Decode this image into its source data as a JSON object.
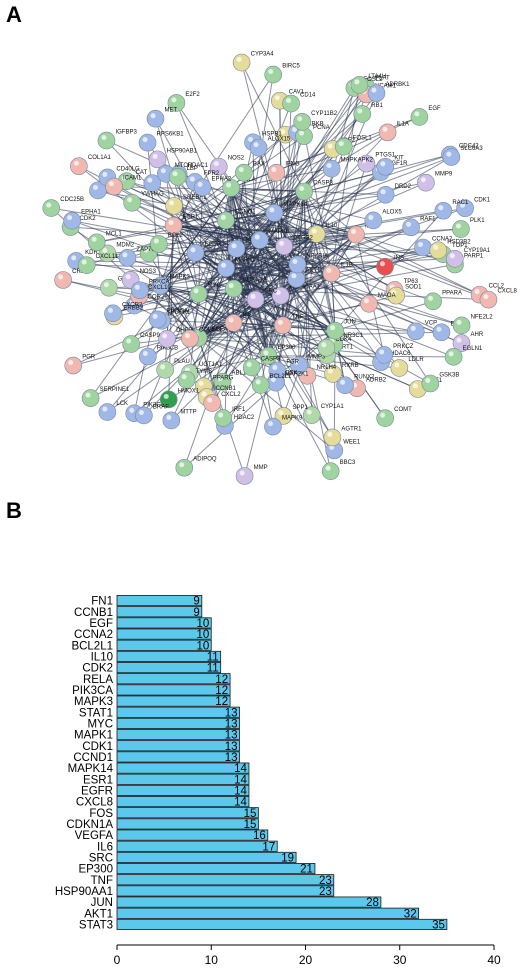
{
  "panel_a": {
    "label": "A",
    "nodes": [
      {
        "name": "PPARA",
        "color": "#9fd4a0"
      },
      {
        "name": "TP63",
        "color": "#f0b8b0"
      },
      {
        "name": "VCP",
        "color": "#9fb8e8"
      },
      {
        "name": "AHR",
        "color": "#d0c0e8"
      },
      {
        "name": "HDAC6",
        "color": "#9fb8e8"
      },
      {
        "name": "HSF1",
        "color": "#e6dc9a"
      },
      {
        "name": "SIRT1",
        "color": "#b0d8a8"
      },
      {
        "name": "RXRB",
        "color": "#e6dc9a"
      },
      {
        "name": "NR1H4",
        "color": "#f0b8b0"
      },
      {
        "name": "CYP1A1",
        "color": "#b0d8a8"
      },
      {
        "name": "MMP3",
        "color": "#9fb8e8"
      },
      {
        "name": "MMP",
        "color": "#d0c0e8"
      },
      {
        "name": "SPP1",
        "color": "#e6dc9a"
      },
      {
        "name": "ABL1",
        "color": "#9fd4a0"
      },
      {
        "name": "HDAC2",
        "color": "#9fb8e8"
      },
      {
        "name": "PPARG",
        "color": "#e6dc9a"
      },
      {
        "name": "ADIPOQ",
        "color": "#9fd4a0"
      },
      {
        "name": "UGT1A1",
        "color": "#b0d8a8"
      },
      {
        "name": "PLAU",
        "color": "#b0d8a8"
      },
      {
        "name": "PIK3CG",
        "color": "#9fb8e8"
      },
      {
        "name": "PIK3CB",
        "color": "#9fb8e8"
      },
      {
        "name": "SERPINE1",
        "color": "#9fd4a0"
      },
      {
        "name": "PGR",
        "color": "#f0b8b0"
      },
      {
        "name": "NCOR2",
        "color": "#9fb8e8"
      },
      {
        "name": "GSR",
        "color": "#b0d8a8"
      },
      {
        "name": "KDR",
        "color": "#9fb8e8"
      },
      {
        "name": "NOS3",
        "color": "#d0c0e8"
      },
      {
        "name": "ILK",
        "color": "#9fd4a0"
      },
      {
        "name": "MDM2",
        "color": "#b0d8a8"
      },
      {
        "name": "PRKCB",
        "color": "#9fb8e8"
      },
      {
        "name": "PRKCD",
        "color": "#9fb8e8"
      },
      {
        "name": "CAT",
        "color": "#9fd4a0"
      },
      {
        "name": "IGFBP3",
        "color": "#9fd4a0"
      },
      {
        "name": "HSP90AB1",
        "color": "#d0c0e8"
      },
      {
        "name": "HDAC1",
        "color": "#9fb8e8"
      },
      {
        "name": "NOS2",
        "color": "#d0c0e8"
      },
      {
        "name": "E2F2",
        "color": "#9fd4a0"
      },
      {
        "name": "CYP3A4",
        "color": "#e6dc9a"
      },
      {
        "name": "BIRC5",
        "color": "#9fd4a0"
      },
      {
        "name": "CAV1",
        "color": "#e6dc9a"
      },
      {
        "name": "IFNG",
        "color": "#f0b8b0"
      },
      {
        "name": "AR",
        "color": "#e6dc9a"
      },
      {
        "name": "IKBKB",
        "color": "#9fb8e8"
      },
      {
        "name": "RB1",
        "color": "#9fd4a0"
      },
      {
        "name": "PLAT",
        "color": "#9fd4a0"
      },
      {
        "name": "IGF2",
        "color": "#e6dc9a"
      },
      {
        "name": "IGF1R",
        "color": "#9fb8e8"
      },
      {
        "name": "EGF",
        "color": "#9fd4a0"
      },
      {
        "name": "HSP90AA1",
        "color": "#d0c0e8"
      },
      {
        "name": "EP300",
        "color": "#9fd4a0"
      },
      {
        "name": "CDK1",
        "color": "#9fb8e8"
      },
      {
        "name": "CCNA2",
        "color": "#9fb8e8"
      },
      {
        "name": "PLK1",
        "color": "#9fd4a0"
      },
      {
        "name": "SOD1",
        "color": "#e6dc9a"
      },
      {
        "name": "INS",
        "color": "#e85050"
      },
      {
        "name": "ERBB3",
        "color": "#9fb8e8"
      },
      {
        "name": "EGLN1",
        "color": "#9fd4a0"
      },
      {
        "name": "VEGFA",
        "color": "#9fd4a0"
      },
      {
        "name": "ESR1",
        "color": "#f0b8b0"
      },
      {
        "name": "GSK3B",
        "color": "#9fd4a0"
      },
      {
        "name": "CCND1",
        "color": "#9fd4a0"
      },
      {
        "name": "NR3C1",
        "color": "#9fd4a0"
      },
      {
        "name": "CDK4",
        "color": "#b0d8a8"
      },
      {
        "name": "WEE1",
        "color": "#9fb8e8"
      },
      {
        "name": "CSK",
        "color": "#d0c0e8"
      },
      {
        "name": "FGR",
        "color": "#9fb8e8"
      },
      {
        "name": "EGFR",
        "color": "#9fb8e8"
      },
      {
        "name": "SRC",
        "color": "#d0c0e8"
      },
      {
        "name": "AKT1",
        "color": "#9fb8e8"
      },
      {
        "name": "IRF1",
        "color": "#9fd4a0"
      },
      {
        "name": "RELA",
        "color": "#9fd4a0"
      },
      {
        "name": "CCNB1",
        "color": "#e6dc9a"
      },
      {
        "name": "TYMS",
        "color": "#9fd4a0"
      },
      {
        "name": "DHFR",
        "color": "#d0c0e8"
      },
      {
        "name": "COL3A1",
        "color": "#f0b8b0"
      },
      {
        "name": "FGFR1",
        "color": "#9fb8e8"
      },
      {
        "name": "PIK3CA",
        "color": "#9fb8e8"
      },
      {
        "name": "ERBB2",
        "color": "#f0d8a0"
      },
      {
        "name": "STAT1",
        "color": "#9fb8e8"
      },
      {
        "name": "IL2",
        "color": "#f0b8b0"
      },
      {
        "name": "NFKBIA",
        "color": "#9fb8e8"
      },
      {
        "name": "CRP",
        "color": "#f0b8b0"
      },
      {
        "name": "CDK2",
        "color": "#9fd4a0"
      },
      {
        "name": "CDC25B",
        "color": "#9fd4a0"
      },
      {
        "name": "CD40LG",
        "color": "#9fb8e8"
      },
      {
        "name": "YWHAG",
        "color": "#9fd4a0"
      },
      {
        "name": "COL1A1",
        "color": "#f0b8b0"
      },
      {
        "name": "SREBF1",
        "color": "#e6dc9a"
      },
      {
        "name": "MTOR",
        "color": "#9fb8e8"
      },
      {
        "name": "RPS6KB1",
        "color": "#9fb8e8"
      },
      {
        "name": "MAPK3",
        "color": "#9fb8e8"
      },
      {
        "name": "MYC",
        "color": "#9fd4a0"
      },
      {
        "name": "IL6",
        "color": "#f0b8b0"
      },
      {
        "name": "JUN",
        "color": "#9fd4a0"
      },
      {
        "name": "CDKN1A",
        "color": "#9fd4a0"
      },
      {
        "name": "TNF",
        "color": "#f0b8b0"
      },
      {
        "name": "PCNA",
        "color": "#9fd4a0"
      },
      {
        "name": "FOSL2",
        "color": "#9fd4a0"
      },
      {
        "name": "FOSL1",
        "color": "#9fd4a0"
      },
      {
        "name": "VCAM1",
        "color": "#f0b8b0"
      },
      {
        "name": "KIT",
        "color": "#9fb8e8"
      },
      {
        "name": "MMP9",
        "color": "#d0c0e8"
      },
      {
        "name": "CDC42",
        "color": "#9fb8e8"
      },
      {
        "name": "RAF1",
        "color": "#9fb8e8"
      },
      {
        "name": "RAC1",
        "color": "#9fb8e8"
      },
      {
        "name": "MAPK1",
        "color": "#9fb8e8"
      },
      {
        "name": "MAPK8",
        "color": "#9fb8e8"
      },
      {
        "name": "CCL2",
        "color": "#f0b8b0"
      },
      {
        "name": "CXCL8",
        "color": "#f0b8b0"
      },
      {
        "name": "NFE2L2",
        "color": "#9fd4a0"
      },
      {
        "name": "MAOA",
        "color": "#f0b8b0"
      },
      {
        "name": "LDLR",
        "color": "#e6dc9a"
      },
      {
        "name": "PRKCZ",
        "color": "#9fb8e8"
      },
      {
        "name": "MAPK14",
        "color": "#9fb8e8"
      },
      {
        "name": "COMT",
        "color": "#9fd4a0"
      },
      {
        "name": "ADRB2",
        "color": "#f0b8b0"
      },
      {
        "name": "AGTR1",
        "color": "#e6dc9a"
      },
      {
        "name": "RUNX2",
        "color": "#9fb8e8"
      },
      {
        "name": "BBC3",
        "color": "#9fd4a0"
      },
      {
        "name": "MAP2K1",
        "color": "#9fb8e8"
      },
      {
        "name": "BCL2L1",
        "color": "#9fd4a0"
      },
      {
        "name": "MAPK9",
        "color": "#9fb8e8"
      },
      {
        "name": "CASP8",
        "color": "#9fd4a0"
      },
      {
        "name": "IL10",
        "color": "#e6dc9a"
      },
      {
        "name": "HMOX1",
        "color": "#30a050"
      },
      {
        "name": "CXCL2",
        "color": "#f0b8b0"
      },
      {
        "name": "MTTP",
        "color": "#9fb8e8"
      },
      {
        "name": "BRAF",
        "color": "#9fb8e8"
      },
      {
        "name": "LCK",
        "color": "#9fb8e8"
      },
      {
        "name": "CASP9",
        "color": "#9fd4a0"
      },
      {
        "name": "IL1B",
        "color": "#f0b8b0"
      },
      {
        "name": "CXCL10",
        "color": "#f0b8b0"
      },
      {
        "name": "CXCR2",
        "color": "#9fb8e8"
      },
      {
        "name": "CXCL11",
        "color": "#9fd4a0"
      },
      {
        "name": "PRKCA",
        "color": "#9fb8e8"
      },
      {
        "name": "ZAP70",
        "color": "#9fb8e8"
      },
      {
        "name": "MCL1",
        "color": "#9fd4a0"
      },
      {
        "name": "BCL2",
        "color": "#9fd4a0"
      },
      {
        "name": "EPHA1",
        "color": "#9fb8e8"
      },
      {
        "name": "ICAM1",
        "color": "#f0b8b0"
      },
      {
        "name": "CASP3",
        "color": "#9fd4a0"
      },
      {
        "name": "FPR2",
        "color": "#9fb8e8"
      },
      {
        "name": "LBP",
        "color": "#9fd4a0"
      },
      {
        "name": "EPHA2",
        "color": "#9fb8e8"
      },
      {
        "name": "MET",
        "color": "#9fb8e8"
      },
      {
        "name": "BAX",
        "color": "#9fd4a0"
      },
      {
        "name": "PTGS2",
        "color": "#d0c0e8"
      },
      {
        "name": "HSPB1",
        "color": "#9fb8e8"
      },
      {
        "name": "ALOX15",
        "color": "#9fb8e8"
      },
      {
        "name": "CYP11B2",
        "color": "#9fd4a0"
      },
      {
        "name": "CD14",
        "color": "#9fd4a0"
      },
      {
        "name": "ADRBK1",
        "color": "#9fb8e8"
      },
      {
        "name": "LTA4H",
        "color": "#9fd4a0"
      },
      {
        "name": "PTGS1",
        "color": "#d0c0e8"
      },
      {
        "name": "MAPKAPK2",
        "color": "#9fb8e8"
      },
      {
        "name": "IL1A",
        "color": "#f0b8b0"
      },
      {
        "name": "SLC6A3",
        "color": "#9fb8e8"
      },
      {
        "name": "DRD2",
        "color": "#9fb8e8"
      },
      {
        "name": "ALOX5",
        "color": "#9fb8e8"
      },
      {
        "name": "TOP1",
        "color": "#9fd4a0"
      },
      {
        "name": "PARP1",
        "color": "#9fd4a0"
      },
      {
        "name": "HSD3B2",
        "color": "#e6dc9a"
      },
      {
        "name": "CYP19A1",
        "color": "#d0c0e8"
      }
    ]
  },
  "panel_b": {
    "label": "B"
  },
  "chart_data": {
    "type": "bar",
    "orientation": "horizontal",
    "categories": [
      "FN1",
      "CCNB1",
      "EGF",
      "CCNA2",
      "BCL2L1",
      "IL10",
      "CDK2",
      "RELA",
      "PIK3CA",
      "MAPK3",
      "STAT1",
      "MYC",
      "MAPK1",
      "CDK1",
      "CCND1",
      "MAPK14",
      "ESR1",
      "EGFR",
      "CXCL8",
      "FOS",
      "CDKN1A",
      "VEGFA",
      "IL6",
      "SRC",
      "EP300",
      "TNF",
      "HSP90AA1",
      "JUN",
      "AKT1",
      "STAT3"
    ],
    "values": [
      9,
      9,
      10,
      10,
      10,
      11,
      11,
      12,
      12,
      12,
      13,
      13,
      13,
      13,
      13,
      14,
      14,
      14,
      14,
      15,
      15,
      16,
      17,
      19,
      21,
      23,
      23,
      28,
      32,
      35
    ],
    "xlim": [
      0,
      40
    ],
    "xticks": [
      0,
      10,
      20,
      30,
      40
    ],
    "bar_color": "#5bc8ec",
    "title": "",
    "xlabel": "",
    "ylabel": ""
  }
}
